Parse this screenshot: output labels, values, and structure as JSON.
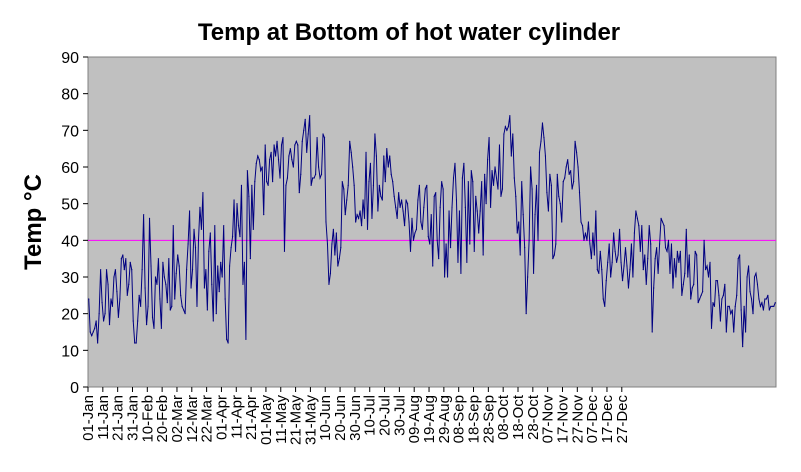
{
  "chart_data": {
    "type": "line",
    "title": "Temp at Bottom of hot water cylinder",
    "xlabel": "",
    "ylabel": "Temp °C",
    "ylim": [
      0,
      90
    ],
    "yticks": [
      0,
      10,
      20,
      30,
      40,
      50,
      60,
      70,
      80,
      90
    ],
    "x_tick_labels": [
      "01-Jan",
      "11-Jan",
      "21-Jan",
      "31-Jan",
      "10-Feb",
      "20-Feb",
      "02-Mar",
      "12-Mar",
      "22-Mar",
      "01-Apr",
      "11-Apr",
      "21-Apr",
      "01-May",
      "11-May",
      "21-May",
      "31-May",
      "10-Jun",
      "20-Jun",
      "30-Jun",
      "10-Jul",
      "20-Jul",
      "30-Jul",
      "09-Aug",
      "19-Aug",
      "29-Aug",
      "08-Sep",
      "18-Sep",
      "28-Sep",
      "08-Oct",
      "18-Oct",
      "28-Oct",
      "07-Nov",
      "17-Nov",
      "27-Nov",
      "07-Dec",
      "17-Dec",
      "27-Dec"
    ],
    "grid": false,
    "legend": "none",
    "threshold_line": {
      "value": 40,
      "color": "#ff00ff"
    },
    "series_color": "#000080",
    "plot_background": "#c0c0c0",
    "series": [
      {
        "values": [
          24,
          15,
          14,
          15,
          16,
          18,
          12,
          20,
          32,
          23,
          18,
          20,
          32,
          28,
          17,
          24,
          22,
          30,
          32,
          26,
          19,
          24,
          35,
          36,
          32,
          35,
          25,
          28,
          34,
          32,
          18,
          12,
          12,
          18,
          25,
          22,
          32,
          47,
          27,
          17,
          22,
          46,
          33,
          19,
          16,
          30,
          28,
          35,
          24,
          16,
          34,
          30,
          28,
          23,
          35,
          21,
          22,
          44,
          24,
          31,
          36,
          33,
          25,
          22,
          21,
          20,
          32,
          39,
          48,
          27,
          32,
          43,
          38,
          22,
          40,
          49,
          43,
          53,
          27,
          32,
          21,
          37,
          42,
          28,
          18,
          44,
          20,
          33,
          26,
          34,
          30,
          44,
          24,
          13,
          12,
          33,
          38,
          41,
          51,
          37,
          50,
          44,
          41,
          55,
          28,
          34,
          13,
          59,
          52,
          35,
          55,
          43,
          56,
          61,
          63,
          62,
          59,
          60,
          47,
          66,
          56,
          55,
          62,
          64,
          56,
          66,
          63,
          67,
          62,
          57,
          66,
          68,
          37,
          55,
          57,
          63,
          65,
          62,
          60,
          66,
          67,
          66,
          53,
          58,
          67,
          70,
          73,
          64,
          69,
          74,
          55,
          57,
          57,
          58,
          68,
          60,
          57,
          58,
          69,
          68,
          45,
          39,
          28,
          31,
          39,
          43,
          36,
          42,
          33,
          35,
          38,
          56,
          54,
          47,
          51,
          55,
          67,
          64,
          60,
          55,
          45,
          47,
          46,
          48,
          44,
          51,
          46,
          64,
          43,
          56,
          61,
          46,
          55,
          69,
          63,
          48,
          55,
          52,
          51,
          63,
          56,
          65,
          60,
          63,
          58,
          56,
          52,
          49,
          46,
          53,
          49,
          51,
          48,
          44,
          51,
          50,
          45,
          37,
          46,
          40,
          42,
          43,
          51,
          55,
          45,
          43,
          49,
          54,
          55,
          41,
          39,
          47,
          33,
          52,
          53,
          40,
          35,
          49,
          56,
          54,
          30,
          39,
          30,
          48,
          38,
          49,
          57,
          61,
          51,
          34,
          48,
          31,
          57,
          61,
          49,
          34,
          56,
          39,
          59,
          56,
          37,
          52,
          48,
          42,
          48,
          56,
          36,
          58,
          50,
          62,
          68,
          49,
          59,
          55,
          60,
          57,
          54,
          66,
          52,
          54,
          69,
          71,
          70,
          71,
          74,
          63,
          69,
          57,
          52,
          42,
          45,
          36,
          56,
          47,
          38,
          20,
          30,
          40,
          60,
          54,
          31,
          47,
          55,
          40,
          64,
          67,
          72,
          68,
          63,
          53,
          48,
          58,
          55,
          35,
          36,
          39,
          58,
          52,
          50,
          45,
          56,
          57,
          60,
          62,
          58,
          59,
          54,
          56,
          67,
          64,
          60,
          53,
          45,
          44,
          40,
          42,
          40,
          45,
          39,
          35,
          42,
          36,
          48,
          32,
          31,
          37,
          32,
          24,
          22,
          29,
          34,
          39,
          30,
          34,
          42,
          37,
          34,
          36,
          43,
          34,
          29,
          33,
          38,
          33,
          27,
          32,
          39,
          30,
          42,
          48,
          46,
          44,
          37,
          44,
          32,
          36,
          28,
          35,
          44,
          39,
          15,
          27,
          35,
          38,
          31,
          39,
          46,
          45,
          44,
          38,
          37,
          40,
          31,
          39,
          27,
          35,
          30,
          37,
          34,
          37,
          25,
          28,
          31,
          43,
          30,
          36,
          24,
          27,
          28,
          37,
          36,
          23,
          24,
          25,
          26,
          40,
          32,
          33,
          30,
          34,
          16,
          23,
          22,
          29,
          29,
          25,
          18,
          24,
          25,
          28,
          15,
          22,
          22,
          20,
          21,
          15,
          22,
          25,
          35,
          36,
          21,
          11,
          22,
          15,
          30,
          33,
          26,
          24,
          20,
          30,
          31,
          28,
          24,
          22,
          23,
          21,
          24,
          24,
          25,
          21,
          22,
          22,
          22,
          23
        ]
      }
    ]
  }
}
